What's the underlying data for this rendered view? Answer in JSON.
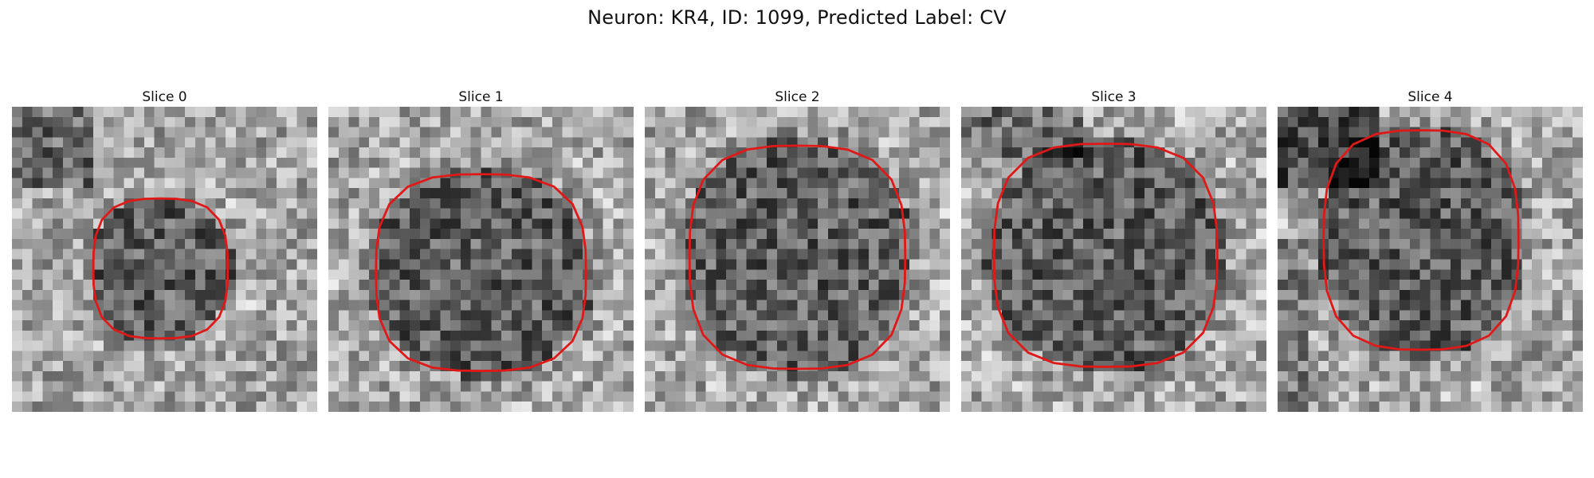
{
  "figure": {
    "suptitle": "Neuron: KR4, ID: 1099, Predicted Label: CV"
  },
  "contour_color": "#e01818",
  "panels": [
    {
      "title": "Slice 0",
      "roi": {
        "cx": 14.6,
        "cy": 15.9,
        "rx": 7.1,
        "ry": 7.4
      }
    },
    {
      "title": "Slice 1",
      "roi": {
        "cx": 15.0,
        "cy": 16.3,
        "rx": 11.1,
        "ry": 10.4
      }
    },
    {
      "title": "Slice 2",
      "roi": {
        "cx": 15.0,
        "cy": 14.8,
        "rx": 11.4,
        "ry": 11.8
      }
    },
    {
      "title": "Slice 3",
      "roi": {
        "cx": 14.2,
        "cy": 14.6,
        "rx": 11.8,
        "ry": 11.8
      }
    },
    {
      "title": "Slice 4",
      "roi": {
        "cx": 14.1,
        "cy": 13.1,
        "rx": 10.3,
        "ry": 11.6
      }
    }
  ]
}
